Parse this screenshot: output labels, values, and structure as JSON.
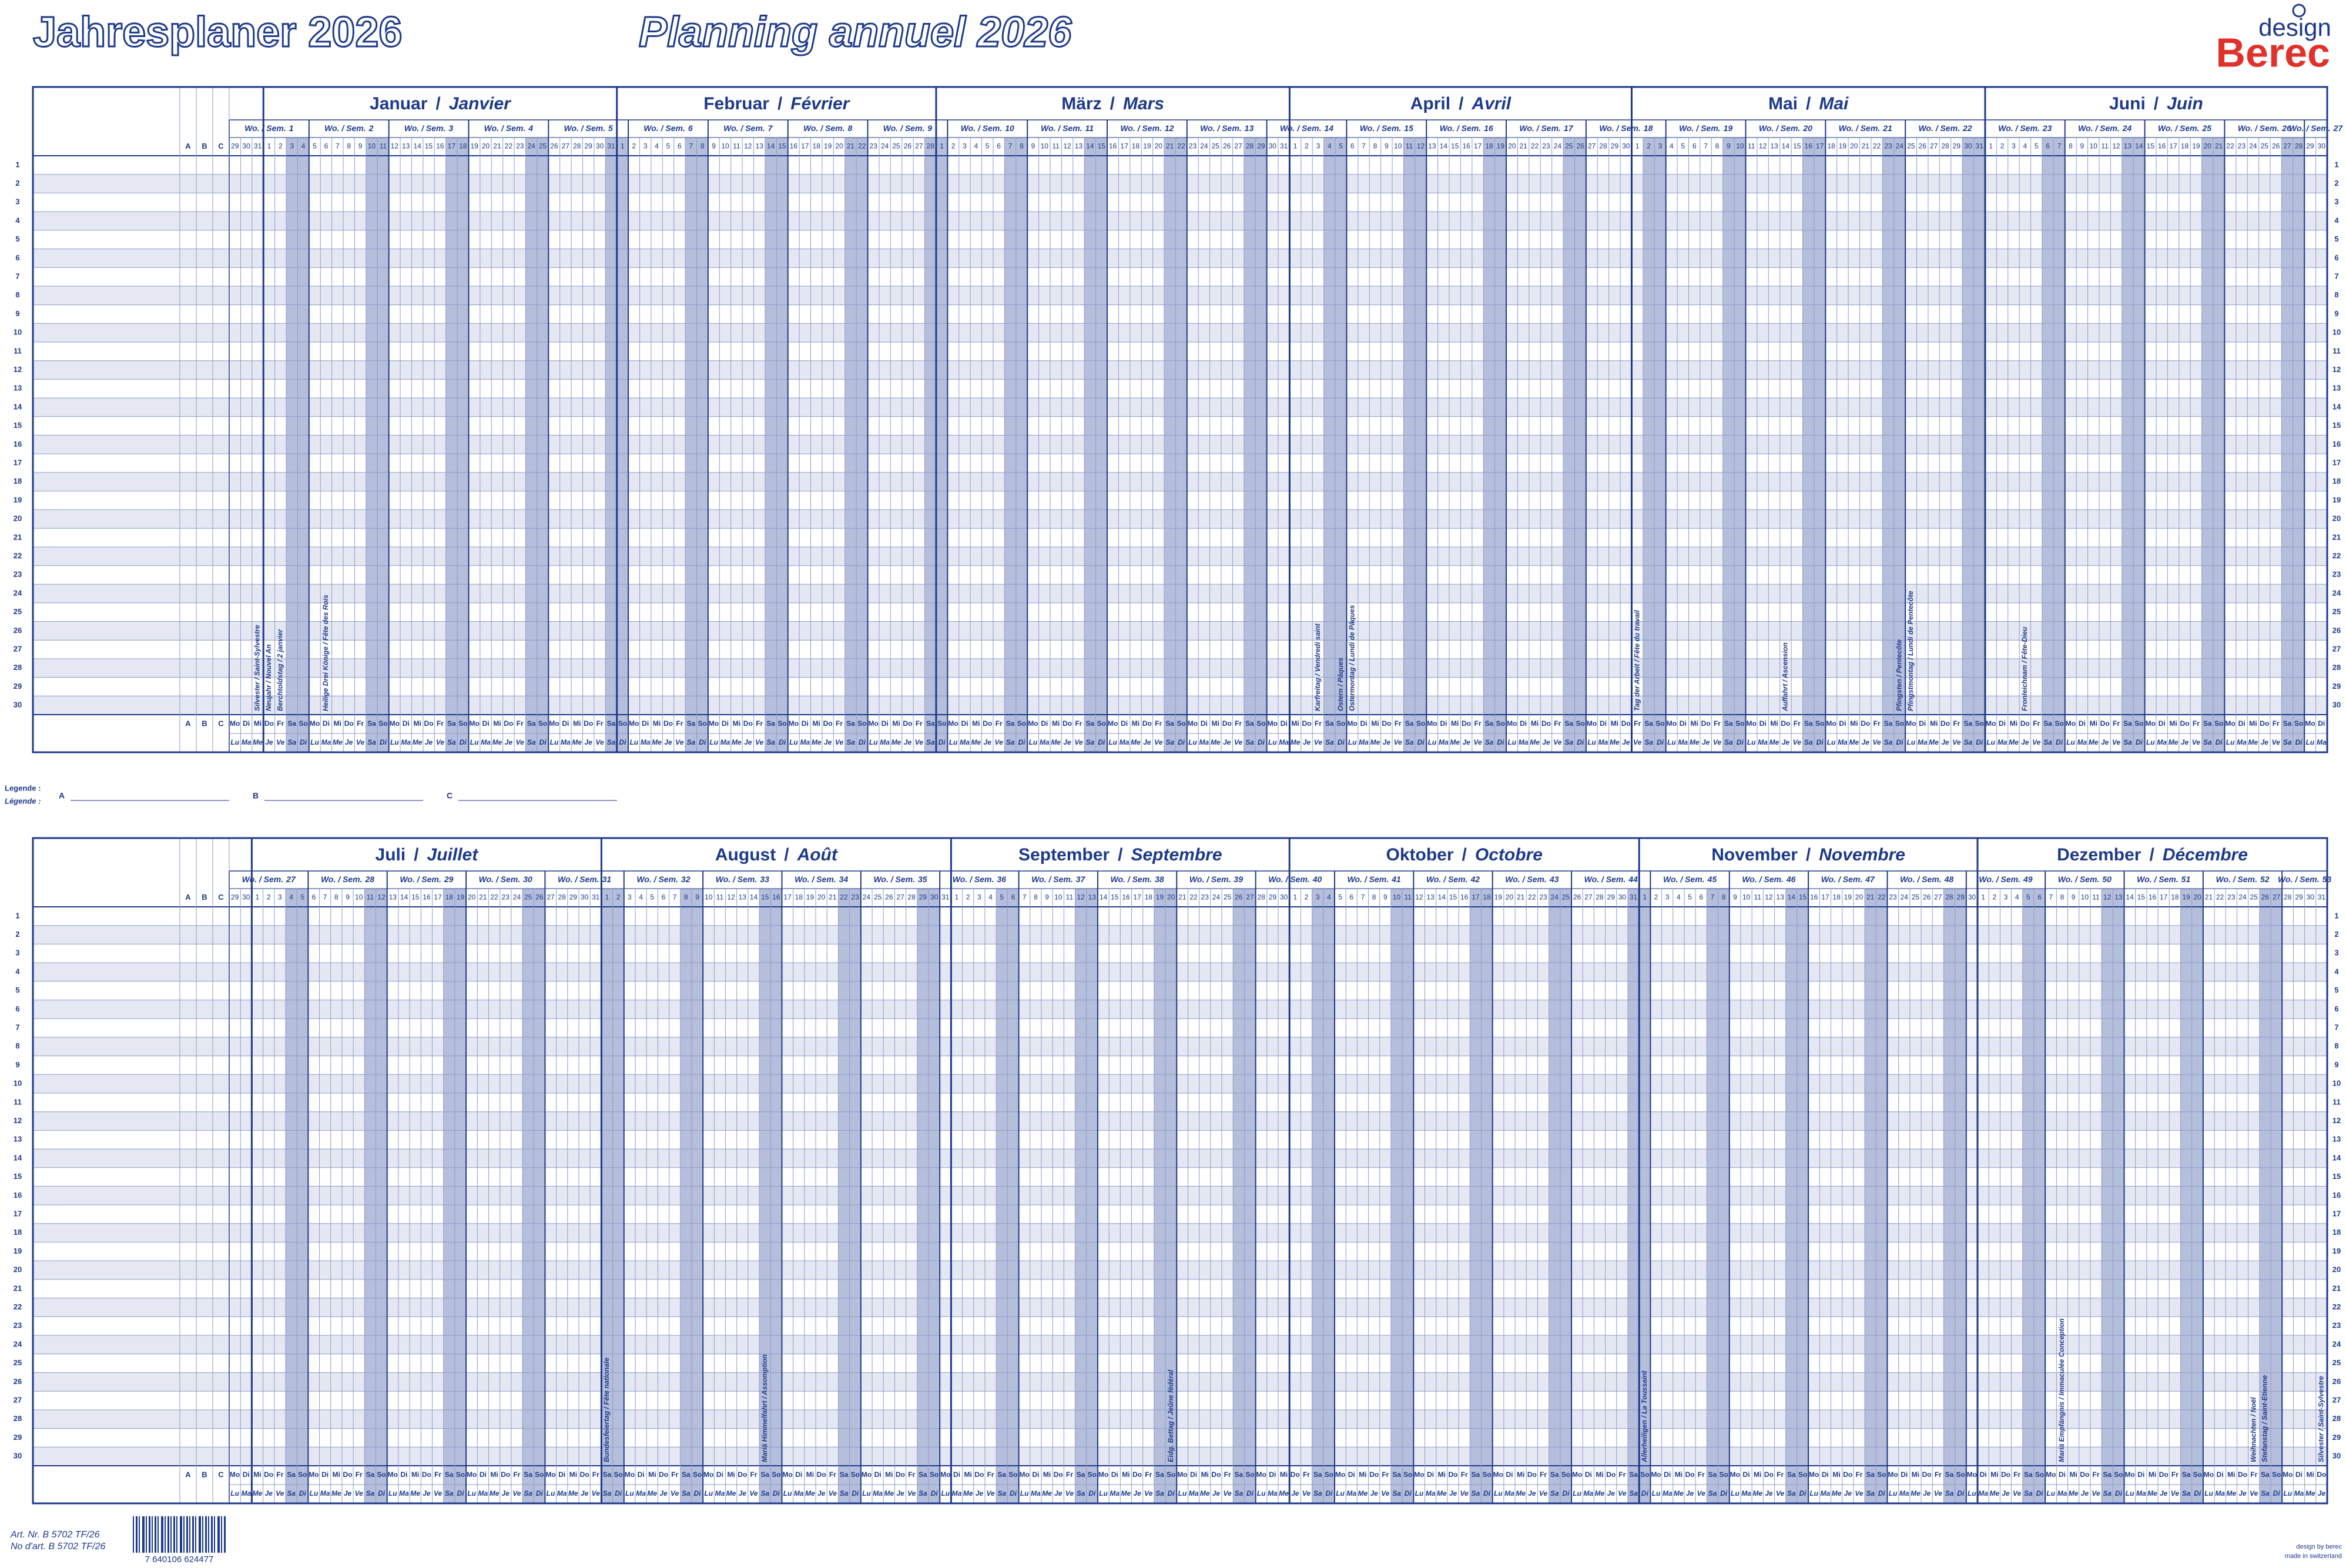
{
  "header": {
    "title_de": "Jahresplaner 2026",
    "title_fr": "Planning annuel 2026",
    "logo_design": "design",
    "logo_brand": "Berec"
  },
  "year": 2026,
  "calendar": {
    "day_numbers": [
      1,
      2,
      3,
      4,
      5,
      6,
      7,
      8,
      9,
      10,
      11,
      12,
      13,
      14,
      15,
      16,
      17,
      18,
      19,
      20,
      21,
      22,
      23,
      24,
      25,
      26,
      27,
      28,
      29,
      30,
      31
    ],
    "weekdays_de": [
      "Mo",
      "Di",
      "Mi",
      "Do",
      "Fr",
      "Sa",
      "So"
    ],
    "weekdays_fr": [
      "Lu",
      "Ma",
      "Me",
      "Je",
      "Ve",
      "Sa",
      "Di"
    ],
    "week_label": "Wo. / Sem.",
    "name_separator": "/",
    "columns": [
      "A",
      "B",
      "C"
    ],
    "rows": [
      1,
      2,
      3,
      4,
      5,
      6,
      7,
      8,
      9,
      10,
      11,
      12,
      13,
      14,
      15,
      16,
      17,
      18,
      19,
      20,
      21,
      22,
      23,
      24,
      25,
      26,
      27,
      28,
      29,
      30
    ],
    "halves": [
      {
        "lead_days": [
          29,
          30,
          31
        ],
        "lead_holidays": [
          {
            "day": 31,
            "label": "Silvester / Saint-Sylvestre"
          }
        ],
        "weeks": [
          1,
          2,
          3,
          4,
          5,
          6,
          7,
          8,
          9,
          10,
          11,
          12,
          13,
          14,
          15,
          16,
          17,
          18,
          19,
          20,
          21,
          22,
          23,
          24,
          25,
          26,
          27
        ],
        "months": [
          {
            "name_de": "Januar",
            "name_fr": "Janvier",
            "days": 31,
            "holidays": [
              {
                "day": 1,
                "label": "Neujahr / Nouvel An"
              },
              {
                "day": 2,
                "label": "Berchtoldstag / 2 janvier"
              },
              {
                "day": 6,
                "label": "Heilige Drei Könige / Fête des Rois"
              }
            ]
          },
          {
            "name_de": "Februar",
            "name_fr": "Février",
            "days": 28,
            "holidays": []
          },
          {
            "name_de": "März",
            "name_fr": "Mars",
            "days": 31,
            "holidays": []
          },
          {
            "name_de": "April",
            "name_fr": "Avril",
            "days": 30,
            "holidays": [
              {
                "day": 3,
                "label": "Karfreitag / Vendredi saint"
              },
              {
                "day": 5,
                "label": "Ostern / Pâques"
              },
              {
                "day": 6,
                "label": "Ostermontag / Lundi de Pâques"
              }
            ]
          },
          {
            "name_de": "Mai",
            "name_fr": "Mai",
            "days": 31,
            "holidays": [
              {
                "day": 1,
                "label": "Tag der Arbeit / Fête du travail"
              },
              {
                "day": 14,
                "label": "Auffahrt / Ascension"
              },
              {
                "day": 24,
                "label": "Pfingsten / Pentecôte"
              },
              {
                "day": 25,
                "label": "Pfingstmontag / Lundi de Pentecôte"
              }
            ]
          },
          {
            "name_de": "Juni",
            "name_fr": "Juin",
            "days": 30,
            "holidays": [
              {
                "day": 4,
                "label": "Fronleichnam / Fête-Dieu"
              }
            ]
          }
        ]
      },
      {
        "lead_days": [
          29,
          30
        ],
        "lead_holidays": [],
        "weeks": [
          27,
          28,
          29,
          30,
          31,
          32,
          33,
          34,
          35,
          36,
          37,
          38,
          39,
          40,
          41,
          42,
          43,
          44,
          45,
          46,
          47,
          48,
          49,
          50,
          51,
          52,
          53
        ],
        "months": [
          {
            "name_de": "Juli",
            "name_fr": "Juillet",
            "days": 31,
            "holidays": []
          },
          {
            "name_de": "August",
            "name_fr": "Août",
            "days": 31,
            "holidays": [
              {
                "day": 1,
                "label": "Bundesfeiertag / Fête nationale"
              },
              {
                "day": 15,
                "label": "Mariä Himmelfahrt / Assomption"
              }
            ]
          },
          {
            "name_de": "September",
            "name_fr": "Septembre",
            "days": 30,
            "holidays": [
              {
                "day": 20,
                "label": "Eidg. Bettag / Jeûne fédéral"
              }
            ]
          },
          {
            "name_de": "Oktober",
            "name_fr": "Octobre",
            "days": 31,
            "holidays": []
          },
          {
            "name_de": "November",
            "name_fr": "Novembre",
            "days": 30,
            "holidays": [
              {
                "day": 1,
                "label": "Allerheiligen / La Toussaint"
              }
            ]
          },
          {
            "name_de": "Dezember",
            "name_fr": "Décembre",
            "days": 31,
            "holidays": [
              {
                "day": 8,
                "label": "Mariä Empfängnis / Immaculée Conception"
              },
              {
                "day": 25,
                "label": "Weihnachten / Noël"
              },
              {
                "day": 26,
                "label": "Stefanstag / Saint-Etienne"
              },
              {
                "day": 31,
                "label": "Silvester / Saint-Sylvestre"
              }
            ]
          }
        ]
      }
    ]
  },
  "legend": {
    "label_de": "Legende :",
    "label_fr": "Légende :",
    "items": [
      "A",
      "B",
      "C"
    ]
  },
  "footer": {
    "article_de": "Art. Nr. B 5702 TF/26",
    "article_fr": "No d'art. B 5702 TF/26",
    "barcode": "7 640106 624477",
    "design_by": "design by berec",
    "made_in": "made in switzerland"
  }
}
